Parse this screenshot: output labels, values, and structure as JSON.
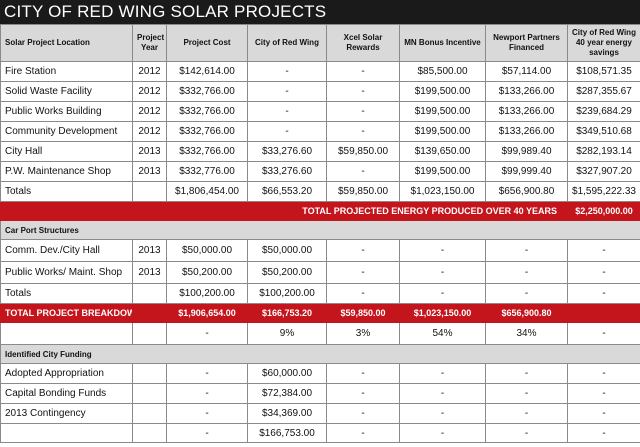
{
  "title": "CITY OF RED WING SOLAR PROJECTS",
  "headers": [
    "Solar Project Location",
    "Project Year",
    "Project Cost",
    "City of Red Wing",
    "Xcel Solar Rewards",
    "MN Bonus Incentive",
    "Newport Partners Financed",
    "City of Red Wing 40 year energy savings"
  ],
  "projects": [
    [
      "Fire Station",
      "2012",
      "$142,614.00",
      "-",
      "-",
      "$85,500.00",
      "$57,114.00",
      "$108,571.35"
    ],
    [
      "Solid Waste Facility",
      "2012",
      "$332,766.00",
      "-",
      "-",
      "$199,500.00",
      "$133,266.00",
      "$287,355.67"
    ],
    [
      "Public Works Building",
      "2012",
      "$332,766.00",
      "-",
      "-",
      "$199,500.00",
      "$133,266.00",
      "$239,684.29"
    ],
    [
      "Community Development",
      "2012",
      "$332,766.00",
      "-",
      "-",
      "$199,500.00",
      "$133,266.00",
      "$349,510.68"
    ],
    [
      "City Hall",
      "2013",
      "$332,766.00",
      "$33,276.60",
      "$59,850.00",
      "$139,650.00",
      "$99,989.40",
      "$282,193.14"
    ],
    [
      "P.W. Maintenance Shop",
      "2013",
      "$332,776.00",
      "$33,276.60",
      "-",
      "$199,500.00",
      "$99,999.40",
      "$327,907.20"
    ]
  ],
  "projects_total": [
    "Totals",
    "",
    "$1,806,454.00",
    "$66,553.20",
    "$59,850.00",
    "$1,023,150.00",
    "$656,900.80",
    "$1,595,222.33"
  ],
  "energy_row": {
    "label": "TOTAL PROJECTED ENERGY PRODUCED OVER 40 YEARS",
    "value": "$2,250,000.00"
  },
  "carport_header": "Car Port Structures",
  "carport": [
    [
      "Comm. Dev./City Hall",
      "2013",
      "$50,000.00",
      "$50,000.00",
      "-",
      "-",
      "-",
      "-"
    ],
    [
      "Public Works/ Maint. Shop",
      "2013",
      "$50,200.00",
      "$50,200.00",
      "-",
      "-",
      "-",
      "-"
    ]
  ],
  "carport_total": [
    "Totals",
    "",
    "$100,200.00",
    "$100,200.00",
    "-",
    "-",
    "-",
    "-"
  ],
  "breakdown": [
    "TOTAL PROJECT BREAKDOWN",
    "",
    "$1,906,654.00",
    "$166,753.20",
    "$59,850.00",
    "$1,023,150.00",
    "$656,900.80",
    ""
  ],
  "percent_row": [
    "",
    "",
    "-",
    "9%",
    "3%",
    "54%",
    "34%",
    "-"
  ],
  "funding_header": "Identified City Funding",
  "funding": [
    [
      "Adopted Appropriation",
      "",
      "-",
      "$60,000.00",
      "-",
      "-",
      "-",
      "-"
    ],
    [
      "Capital Bonding Funds",
      "",
      "-",
      "$72,384.00",
      "-",
      "-",
      "-",
      "-"
    ],
    [
      "2013 Contingency",
      "",
      "-",
      "$34,369.00",
      "-",
      "-",
      "-",
      "-"
    ],
    [
      "",
      "",
      "-",
      "$166,753.00",
      "-",
      "-",
      "-",
      "-"
    ]
  ],
  "colors": {
    "title_bg": "#1a1a1a",
    "accent_red": "#c4151c",
    "header_gray": "#d9d9d9"
  }
}
